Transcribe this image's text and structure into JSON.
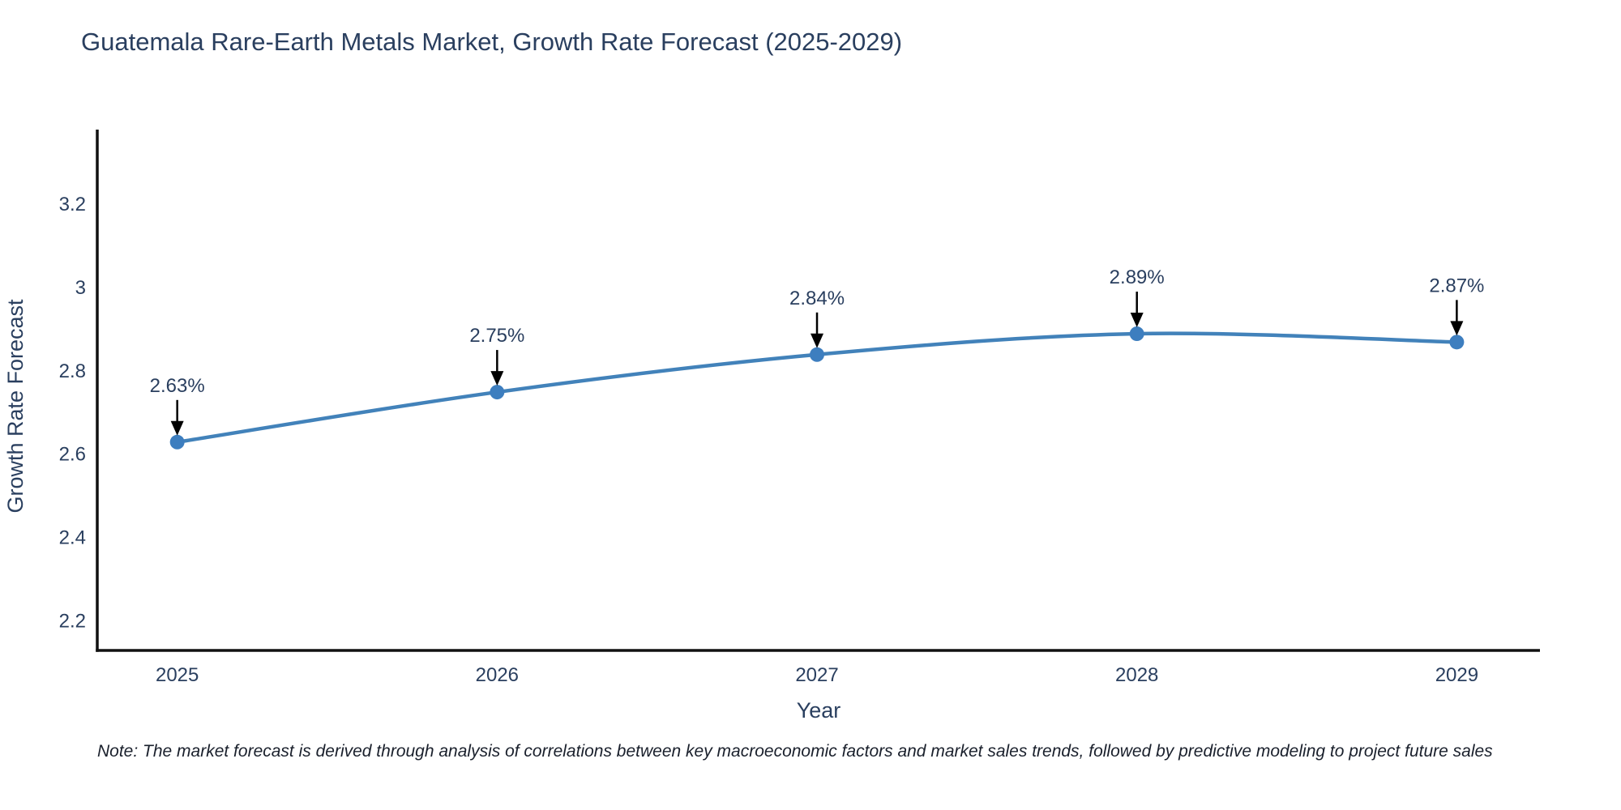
{
  "title": "Guatemala Rare-Earth Metals Market, Growth Rate Forecast (2025-2029)",
  "note": "Note: The market forecast is derived through analysis of correlations between key macroeconomic factors and market sales trends, followed by predictive modeling to project future sales",
  "chart_data": {
    "type": "line",
    "title": "Guatemala Rare-Earth Metals Market, Growth Rate Forecast (2025-2029)",
    "xlabel": "Year",
    "ylabel": "Growth Rate Forecast",
    "x": [
      2025,
      2026,
      2027,
      2028,
      2029
    ],
    "y": [
      2.63,
      2.75,
      2.84,
      2.89,
      2.87
    ],
    "data_labels": [
      "2.63%",
      "2.75%",
      "2.84%",
      "2.89%",
      "2.87%"
    ],
    "xticks": [
      2025,
      2026,
      2027,
      2028,
      2029
    ],
    "xtick_labels": [
      "2025",
      "2026",
      "2027",
      "2028",
      "2029"
    ],
    "yticks": [
      2.2,
      2.4,
      2.6,
      2.8,
      3.0,
      3.2
    ],
    "ytick_labels": [
      "2.2",
      "2.4",
      "2.6",
      "2.8",
      "3",
      "3.2"
    ],
    "xlim": [
      2024.75,
      2029.26
    ],
    "ylim": [
      2.13,
      3.38
    ],
    "grid": false,
    "legend_position": "none",
    "line_shape": "spline",
    "annotations_have_arrows": true,
    "colors": {
      "line": "#4282ba",
      "marker": "#3d7ebf",
      "arrow": "#000000",
      "axis": "#111111",
      "text": "#2a3f5f",
      "note_text": "#1a202c"
    }
  }
}
